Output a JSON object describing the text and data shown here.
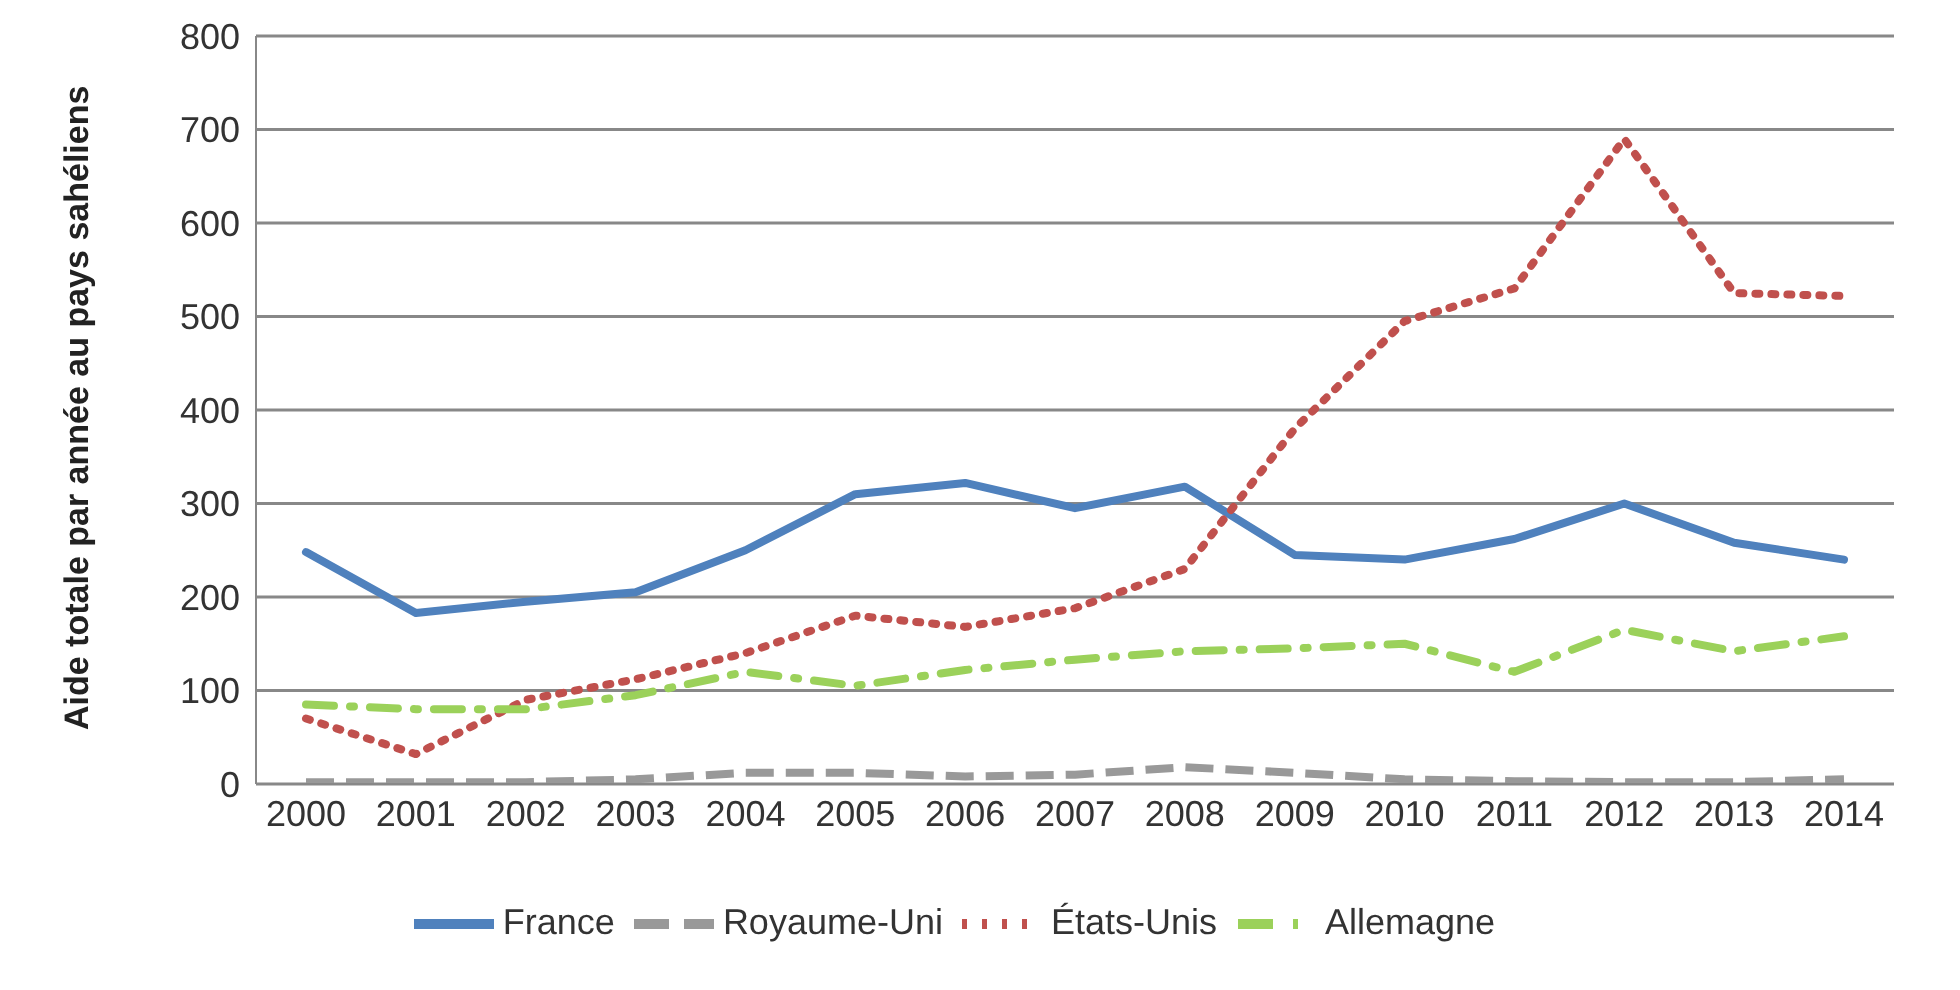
{
  "chart_data": {
    "type": "line",
    "ylabel": "Aide totale par année au pays sahéliens",
    "categories": [
      "2000",
      "2001",
      "2002",
      "2003",
      "2004",
      "2005",
      "2006",
      "2007",
      "2008",
      "2009",
      "2010",
      "2011",
      "2012",
      "2013",
      "2014"
    ],
    "series": [
      {
        "name": "France",
        "color": "#4f81bd",
        "line_style": "solid",
        "values": [
          248,
          183,
          195,
          205,
          250,
          310,
          322,
          295,
          318,
          245,
          240,
          262,
          300,
          258,
          240
        ]
      },
      {
        "name": "Royaume-Uni",
        "color": "#999999",
        "line_style": "dashed",
        "values": [
          2,
          2,
          2,
          5,
          12,
          12,
          8,
          10,
          18,
          12,
          5,
          3,
          2,
          2,
          5
        ]
      },
      {
        "name": "États-Unis",
        "color": "#c0504d",
        "line_style": "dotted",
        "values": [
          70,
          32,
          90,
          112,
          140,
          180,
          168,
          188,
          230,
          380,
          495,
          530,
          690,
          525,
          522
        ]
      },
      {
        "name": "Allemagne",
        "color": "#9bd15a",
        "line_style": "dashdot",
        "values": [
          85,
          80,
          80,
          95,
          120,
          105,
          122,
          133,
          142,
          145,
          150,
          120,
          165,
          142,
          158
        ]
      }
    ],
    "ylim": [
      0,
      800
    ],
    "yticks": [
      0,
      100,
      200,
      300,
      400,
      500,
      600,
      700,
      800
    ],
    "grid": "y",
    "legend": "bottom",
    "marker": "none"
  }
}
